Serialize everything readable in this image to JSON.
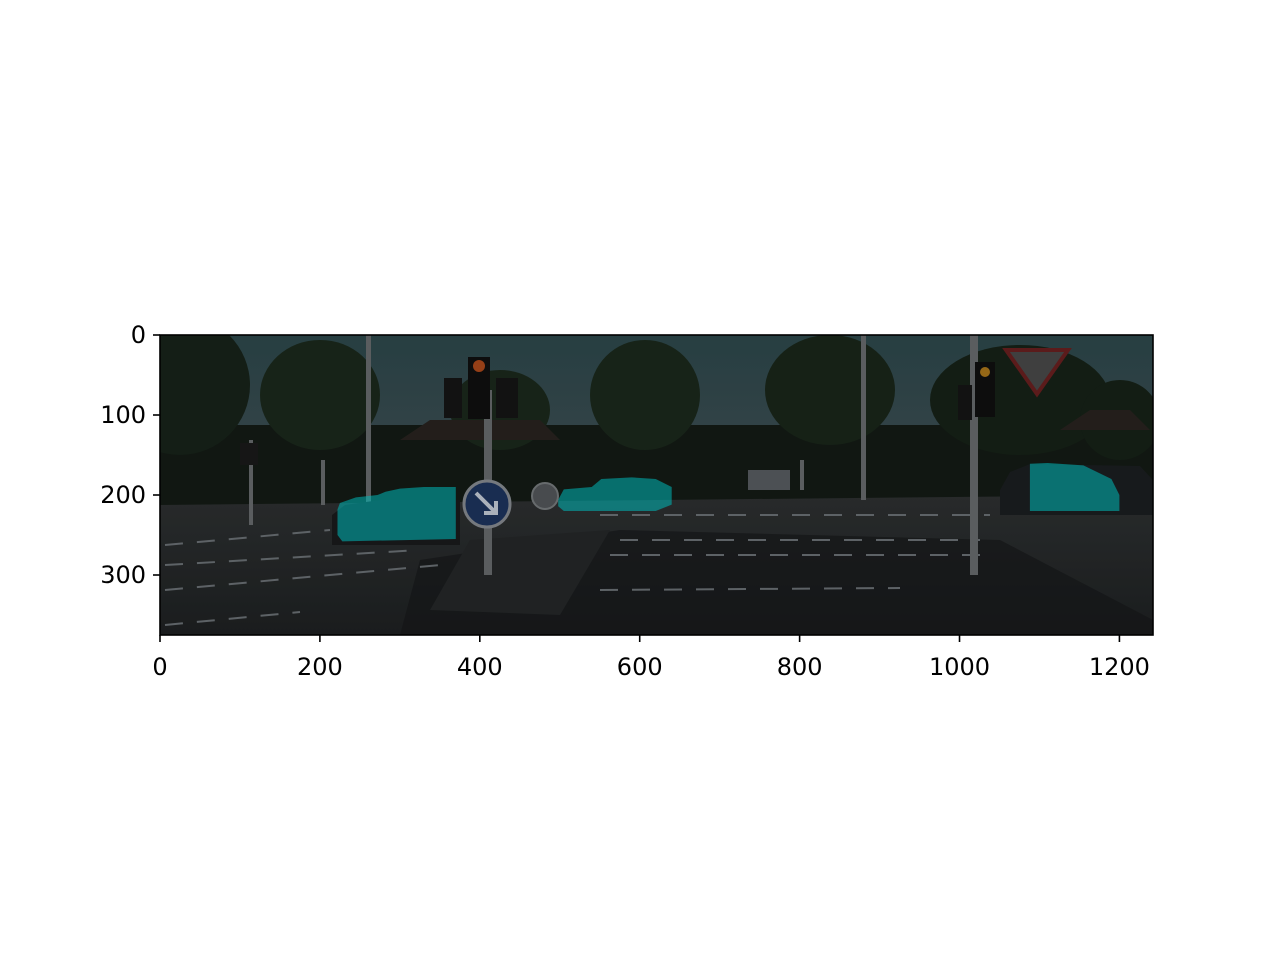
{
  "figure": {
    "image_size": [
      1242,
      375
    ],
    "x_ticks": [
      "0",
      "200",
      "400",
      "600",
      "800",
      "1000",
      "1200"
    ],
    "y_ticks": [
      "0",
      "100",
      "200",
      "300"
    ],
    "x_limits": [
      0,
      1242
    ],
    "y_limits": [
      375,
      0
    ],
    "overlay_color": "#00d8d8",
    "mask_alpha": 0.55
  },
  "scene": {
    "masks": [
      {
        "label": "car-left",
        "points": [
          [
            222,
            218
          ],
          [
            225,
            210
          ],
          [
            245,
            203
          ],
          [
            272,
            200
          ],
          [
            282,
            196
          ],
          [
            300,
            192
          ],
          [
            330,
            190
          ],
          [
            370,
            190
          ],
          [
            370,
            255
          ],
          [
            228,
            258
          ],
          [
            222,
            250
          ]
        ]
      },
      {
        "label": "car-center",
        "points": [
          [
            498,
            206
          ],
          [
            505,
            193
          ],
          [
            540,
            190
          ],
          [
            552,
            180
          ],
          [
            590,
            178
          ],
          [
            620,
            180
          ],
          [
            640,
            190
          ],
          [
            640,
            212
          ],
          [
            620,
            220
          ],
          [
            505,
            220
          ],
          [
            498,
            214
          ]
        ]
      },
      {
        "label": "car-right",
        "points": [
          [
            1088,
            161
          ],
          [
            1110,
            160
          ],
          [
            1155,
            163
          ],
          [
            1190,
            180
          ],
          [
            1200,
            200
          ],
          [
            1200,
            220
          ],
          [
            1088,
            220
          ]
        ]
      }
    ]
  }
}
